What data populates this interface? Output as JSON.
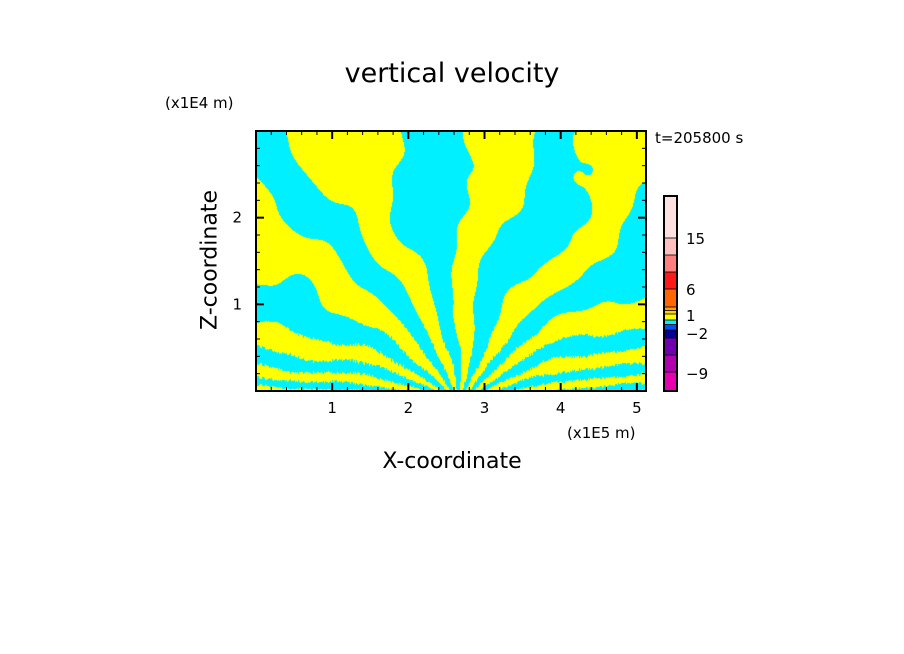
{
  "chart_data": {
    "type": "heatmap",
    "title": "vertical velocity",
    "xlabel": "X-coordinate",
    "ylabel": "Z-coordinate",
    "x_unit": "(x1E5 m)",
    "y_unit": "(x1E4 m)",
    "time_label": "t=205800 s",
    "xlim": [
      0,
      5.12
    ],
    "ylim": [
      0,
      3
    ],
    "xticks": [
      "1",
      "2",
      "3",
      "4",
      "5"
    ],
    "xtick_values": [
      1,
      2,
      3,
      4,
      5
    ],
    "yticks": [
      "1",
      "2"
    ],
    "ytick_values": [
      1,
      2
    ],
    "field_colors": {
      "positive": "#ffff00",
      "negative": "#00f0ff"
    },
    "colorbar": {
      "labels": [
        "15",
        "6",
        "1",
        "−2",
        "−9"
      ],
      "label_values": [
        15,
        6,
        1,
        -2,
        -9
      ],
      "colors_top_to_bottom": [
        "#ffe0e0",
        "#ffbfbf",
        "#ff7f7f",
        "#ff1a1a",
        "#ff6600",
        "#ffa000",
        "#ffd000",
        "#ffff00",
        "#00f0ff",
        "#0050ff",
        "#000099",
        "#7000b0",
        "#b000b0",
        "#e600b0"
      ]
    }
  }
}
